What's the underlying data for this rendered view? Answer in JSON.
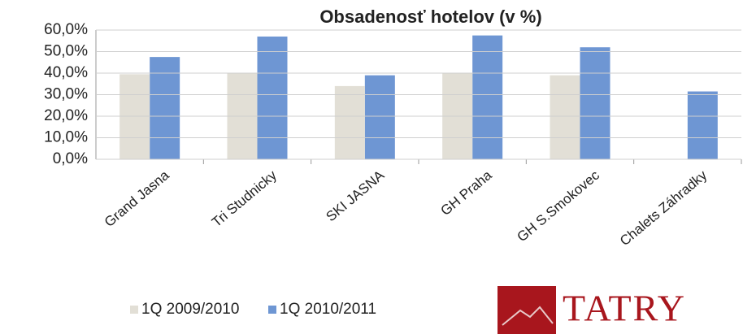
{
  "chart_data": {
    "type": "bar",
    "title": "Obsadenosť hotelov (v %)",
    "categories": [
      "Grand Jasna",
      "Tri Studnicky",
      "SKI JASNA",
      "GH Praha",
      "GH S.Smokovec",
      "Chalets Záhradky"
    ],
    "series": [
      {
        "name": "1Q 2009/2010",
        "color": "#e2dfd6",
        "values": [
          39.5,
          40,
          34,
          40,
          39,
          null
        ]
      },
      {
        "name": "1Q 2010/2011",
        "color": "#6e96d3",
        "values": [
          47.5,
          57,
          39,
          57.5,
          52,
          31.5
        ]
      }
    ],
    "ylim": [
      0,
      60
    ],
    "yticks": [
      {
        "value": 0,
        "label": "0,0%"
      },
      {
        "value": 10,
        "label": "10,0%"
      },
      {
        "value": 20,
        "label": "20,0%"
      },
      {
        "value": 30,
        "label": "30,0%"
      },
      {
        "value": 40,
        "label": "40,0%"
      },
      {
        "value": 50,
        "label": "50,0%"
      },
      {
        "value": 60,
        "label": "60,0%"
      }
    ],
    "grid": true,
    "legend": "bottom-left",
    "logo": "TATRY"
  }
}
